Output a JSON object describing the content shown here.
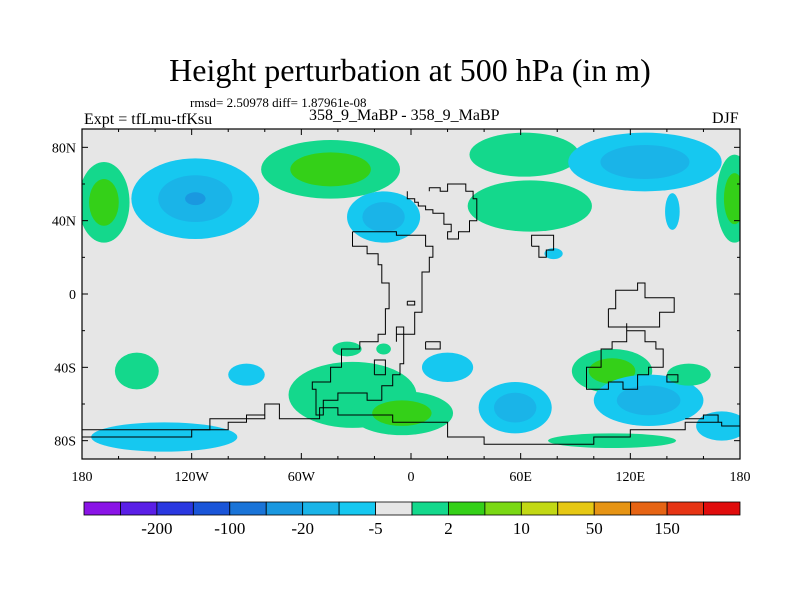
{
  "chart_data": {
    "type": "filled-contour-map",
    "title": "Height perturbation at 500 hPa (in m)",
    "stats_label": "rmsd= 2.50978 diff= 1.87961e-08",
    "left_label": "Expt = tfLmu-tfKsu",
    "center_label": "358_9_MaBP - 358_9_MaBP",
    "right_label": "DJF",
    "x_ticks": [
      "180",
      "120W",
      "60W",
      "0",
      "60E",
      "120E",
      "180"
    ],
    "x_values": [
      -180,
      -120,
      -60,
      0,
      60,
      120,
      180
    ],
    "y_ticks": [
      "80N",
      "40N",
      "0",
      "40S",
      "80S"
    ],
    "y_values": [
      80,
      40,
      0,
      -40,
      -80
    ],
    "xlim": [
      -180,
      180
    ],
    "ylim": [
      -90,
      90
    ],
    "colorbar": {
      "levels": [
        "-200",
        "-100",
        "-20",
        "-5",
        "2",
        "10",
        "50",
        "150"
      ],
      "colors": [
        "#8a14e6",
        "#5a1fe6",
        "#2a38e0",
        "#1a55d8",
        "#1a74d8",
        "#1a98e0",
        "#1ab4e8",
        "#16c8f0",
        "#e6e6e6",
        "#14d88c",
        "#34d018",
        "#7ad814",
        "#c2d814",
        "#e6c814",
        "#e69414",
        "#e66414",
        "#e63414",
        "#e00c0c"
      ]
    },
    "background_color": "#e6e6e6",
    "anomalies": [
      {
        "lon": -118,
        "lat": 52,
        "rx": 35,
        "ry": 22,
        "levels": [
          1,
          2,
          3
        ],
        "sign": "neg"
      },
      {
        "lon": -168,
        "lat": 50,
        "rx": 14,
        "ry": 22,
        "levels": [
          1,
          2
        ],
        "sign": "pos"
      },
      {
        "lon": -44,
        "lat": 68,
        "rx": 38,
        "ry": 16,
        "levels": [
          1,
          2
        ],
        "sign": "pos"
      },
      {
        "lon": -15,
        "lat": 42,
        "rx": 20,
        "ry": 14,
        "levels": [
          1,
          2
        ],
        "sign": "neg"
      },
      {
        "lon": 62,
        "lat": 76,
        "rx": 30,
        "ry": 12,
        "levels": [
          1
        ],
        "sign": "pos"
      },
      {
        "lon": 65,
        "lat": 48,
        "rx": 34,
        "ry": 14,
        "levels": [
          1
        ],
        "sign": "pos"
      },
      {
        "lon": 128,
        "lat": 72,
        "rx": 42,
        "ry": 16,
        "levels": [
          1,
          2
        ],
        "sign": "neg"
      },
      {
        "lon": 177,
        "lat": 52,
        "rx": 10,
        "ry": 24,
        "levels": [
          1,
          2
        ],
        "sign": "pos"
      },
      {
        "lon": 143,
        "lat": 45,
        "rx": 4,
        "ry": 10,
        "levels": [
          1
        ],
        "sign": "neg"
      },
      {
        "lon": 78,
        "lat": 22,
        "rx": 5,
        "ry": 3,
        "levels": [
          1
        ],
        "sign": "neg"
      },
      {
        "lon": -150,
        "lat": -42,
        "rx": 12,
        "ry": 10,
        "levels": [
          1
        ],
        "sign": "pos"
      },
      {
        "lon": -90,
        "lat": -44,
        "rx": 10,
        "ry": 6,
        "levels": [
          1
        ],
        "sign": "neg"
      },
      {
        "lon": -32,
        "lat": -55,
        "rx": 35,
        "ry": 18,
        "levels": [
          1
        ],
        "sign": "pos"
      },
      {
        "lon": -5,
        "lat": -65,
        "rx": 28,
        "ry": 12,
        "levels": [
          1,
          2
        ],
        "sign": "pos"
      },
      {
        "lon": 20,
        "lat": -40,
        "rx": 14,
        "ry": 8,
        "levels": [
          1
        ],
        "sign": "neg"
      },
      {
        "lon": 57,
        "lat": -62,
        "rx": 20,
        "ry": 14,
        "levels": [
          1,
          2
        ],
        "sign": "neg"
      },
      {
        "lon": 110,
        "lat": -42,
        "rx": 22,
        "ry": 12,
        "levels": [
          1,
          2
        ],
        "sign": "pos"
      },
      {
        "lon": 130,
        "lat": -58,
        "rx": 30,
        "ry": 14,
        "levels": [
          1,
          2
        ],
        "sign": "neg"
      },
      {
        "lon": 152,
        "lat": -44,
        "rx": 12,
        "ry": 6,
        "levels": [
          1
        ],
        "sign": "pos"
      },
      {
        "lon": -135,
        "lat": -78,
        "rx": 40,
        "ry": 8,
        "levels": [
          1
        ],
        "sign": "neg"
      },
      {
        "lon": 110,
        "lat": -80,
        "rx": 35,
        "ry": 4,
        "levels": [
          1
        ],
        "sign": "pos"
      },
      {
        "lon": 170,
        "lat": -72,
        "rx": 14,
        "ry": 8,
        "levels": [
          1
        ],
        "sign": "neg"
      },
      {
        "lon": -35,
        "lat": -30,
        "rx": 8,
        "ry": 4,
        "levels": [
          1
        ],
        "sign": "pos"
      },
      {
        "lon": -15,
        "lat": -30,
        "rx": 4,
        "ry": 3,
        "levels": [
          1
        ],
        "sign": "pos"
      }
    ],
    "coastlines": [
      [
        [
          -2,
          56
        ],
        [
          -2,
          52
        ],
        [
          2,
          52
        ],
        [
          2,
          50
        ],
        [
          4,
          50
        ],
        [
          4,
          48
        ],
        [
          8,
          48
        ],
        [
          8,
          46
        ],
        [
          12,
          46
        ],
        [
          12,
          44
        ],
        [
          18,
          44
        ],
        [
          18,
          38
        ],
        [
          22,
          38
        ],
        [
          22,
          34
        ],
        [
          20,
          34
        ],
        [
          20,
          30
        ],
        [
          26,
          30
        ],
        [
          26,
          34
        ],
        [
          32,
          34
        ],
        [
          32,
          40
        ],
        [
          36,
          40
        ],
        [
          36,
          52
        ],
        [
          34,
          52
        ],
        [
          34,
          56
        ],
        [
          30,
          56
        ],
        [
          30,
          60
        ],
        [
          20,
          60
        ],
        [
          20,
          56
        ],
        [
          16,
          56
        ],
        [
          16,
          58
        ],
        [
          10,
          58
        ],
        [
          10,
          56
        ]
      ],
      [
        [
          -32,
          34
        ],
        [
          -32,
          26
        ],
        [
          -24,
          26
        ],
        [
          -24,
          22
        ],
        [
          -18,
          22
        ],
        [
          -18,
          16
        ],
        [
          -16,
          16
        ],
        [
          -16,
          6
        ],
        [
          -12,
          6
        ],
        [
          -12,
          -8
        ],
        [
          -14,
          -8
        ],
        [
          -14,
          -22
        ],
        [
          -18,
          -22
        ],
        [
          -18,
          -26
        ],
        [
          -28,
          -26
        ],
        [
          -28,
          -30
        ],
        [
          -38,
          -30
        ],
        [
          -38,
          -40
        ],
        [
          -44,
          -40
        ],
        [
          -44,
          -48
        ],
        [
          -54,
          -48
        ],
        [
          -54,
          -52
        ],
        [
          -52,
          -52
        ],
        [
          -52,
          -66
        ],
        [
          -48,
          -66
        ],
        [
          -48,
          -58
        ],
        [
          -40,
          -58
        ],
        [
          -40,
          -54
        ],
        [
          -24,
          -54
        ],
        [
          -24,
          -58
        ],
        [
          -16,
          -58
        ],
        [
          -16,
          -50
        ],
        [
          -10,
          -50
        ],
        [
          -10,
          -44
        ],
        [
          -6,
          -44
        ],
        [
          -6,
          -38
        ],
        [
          -4,
          -38
        ],
        [
          -4,
          -22
        ],
        [
          2,
          -22
        ],
        [
          2,
          -10
        ],
        [
          6,
          -10
        ],
        [
          6,
          12
        ],
        [
          10,
          12
        ],
        [
          10,
          20
        ],
        [
          12,
          20
        ],
        [
          12,
          26
        ],
        [
          8,
          26
        ],
        [
          8,
          32
        ],
        [
          -8,
          32
        ],
        [
          -8,
          34
        ],
        [
          -32,
          34
        ]
      ],
      [
        [
          -8,
          -26
        ],
        [
          -8,
          -18
        ],
        [
          -4,
          -18
        ],
        [
          -4,
          -22
        ],
        [
          -8,
          -22
        ],
        [
          -8,
          -26
        ]
      ],
      [
        [
          8,
          -26
        ],
        [
          8,
          -30
        ],
        [
          16,
          -30
        ],
        [
          16,
          -26
        ],
        [
          8,
          -26
        ]
      ],
      [
        [
          -2,
          -4
        ],
        [
          2,
          -4
        ],
        [
          2,
          -6
        ],
        [
          -2,
          -6
        ],
        [
          -2,
          -4
        ]
      ],
      [
        [
          66,
          26
        ],
        [
          66,
          32
        ],
        [
          78,
          32
        ],
        [
          78,
          24
        ],
        [
          74,
          24
        ],
        [
          74,
          20
        ],
        [
          70,
          20
        ],
        [
          70,
          26
        ],
        [
          66,
          26
        ]
      ],
      [
        [
          108,
          -8
        ],
        [
          108,
          -18
        ],
        [
          136,
          -18
        ],
        [
          136,
          -10
        ],
        [
          144,
          -10
        ],
        [
          144,
          -2
        ],
        [
          128,
          -2
        ],
        [
          128,
          6
        ],
        [
          124,
          6
        ],
        [
          124,
          2
        ],
        [
          112,
          2
        ],
        [
          112,
          -8
        ],
        [
          108,
          -8
        ]
      ],
      [
        [
          118,
          -16
        ],
        [
          118,
          -26
        ],
        [
          110,
          -26
        ],
        [
          110,
          -30
        ],
        [
          104,
          -30
        ],
        [
          104,
          -40
        ],
        [
          96,
          -40
        ],
        [
          96,
          -52
        ],
        [
          108,
          -52
        ],
        [
          108,
          -48
        ],
        [
          116,
          -48
        ],
        [
          116,
          -52
        ],
        [
          124,
          -52
        ],
        [
          124,
          -44
        ],
        [
          130,
          -44
        ],
        [
          130,
          -40
        ],
        [
          138,
          -40
        ],
        [
          138,
          -30
        ],
        [
          134,
          -30
        ],
        [
          134,
          -26
        ],
        [
          128,
          -26
        ],
        [
          128,
          -20
        ],
        [
          118,
          -20
        ],
        [
          118,
          -16
        ]
      ],
      [
        [
          140,
          -44
        ],
        [
          140,
          -48
        ],
        [
          146,
          -48
        ],
        [
          146,
          -44
        ],
        [
          140,
          -44
        ]
      ],
      [
        [
          -180,
          -74
        ],
        [
          -110,
          -74
        ],
        [
          -110,
          -68
        ],
        [
          -80,
          -68
        ],
        [
          -80,
          -60
        ],
        [
          -72,
          -60
        ],
        [
          -72,
          -68
        ],
        [
          -50,
          -68
        ],
        [
          -50,
          -62
        ],
        [
          -40,
          -62
        ],
        [
          -40,
          -66
        ],
        [
          -10,
          -66
        ],
        [
          -10,
          -70
        ],
        [
          20,
          -70
        ],
        [
          20,
          -78
        ],
        [
          40,
          -78
        ],
        [
          40,
          -82
        ],
        [
          100,
          -82
        ],
        [
          100,
          -78
        ],
        [
          120,
          -78
        ],
        [
          120,
          -74
        ],
        [
          150,
          -74
        ],
        [
          150,
          -70
        ],
        [
          170,
          -70
        ],
        [
          170,
          -72
        ],
        [
          180,
          -72
        ]
      ],
      [
        [
          -180,
          -78
        ],
        [
          -120,
          -78
        ],
        [
          -120,
          -74
        ],
        [
          -100,
          -74
        ],
        [
          -100,
          -70
        ],
        [
          -90,
          -70
        ],
        [
          -90,
          -66
        ],
        [
          -80,
          -66
        ]
      ],
      [
        [
          150,
          -68
        ],
        [
          160,
          -68
        ],
        [
          160,
          -66
        ],
        [
          168,
          -66
        ],
        [
          168,
          -70
        ]
      ],
      [
        [
          -20,
          -44
        ],
        [
          -20,
          -36
        ],
        [
          -14,
          -36
        ],
        [
          -14,
          -44
        ],
        [
          -20,
          -44
        ]
      ]
    ]
  }
}
